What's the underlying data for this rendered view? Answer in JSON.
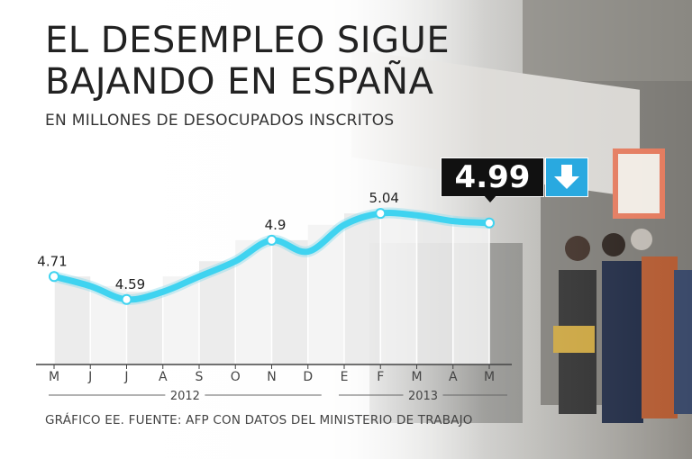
{
  "title_line1": "EL DESEMPLEO SIGUE",
  "title_line2": "BAJANDO EN ESPAÑA",
  "subtitle": "EN MILLONES DE DESOCUPADOS INSCRITOS",
  "footer": "GRÁFICO EE. FUENTE: AFP CON DATOS DEL MINISTERIO DE TRABAJO",
  "callout": {
    "value": "4.99",
    "icon": "down-arrow-icon"
  },
  "colors": {
    "line": "#3fd3f0",
    "callout_bg": "#111111",
    "arrow_bg": "#29a9e0"
  },
  "chart_data": {
    "type": "line",
    "categories": [
      "M",
      "J",
      "J",
      "A",
      "S",
      "O",
      "N",
      "D",
      "E",
      "F",
      "M",
      "A",
      "M"
    ],
    "year_groups": [
      {
        "label": "2012",
        "from": 0,
        "to": 7
      },
      {
        "label": "2013",
        "from": 8,
        "to": 12
      }
    ],
    "values": [
      4.71,
      4.66,
      4.59,
      4.63,
      4.71,
      4.79,
      4.9,
      4.84,
      4.98,
      5.04,
      5.03,
      5.0,
      4.99
    ],
    "labeled_points": [
      {
        "index": 0,
        "text": "4.71"
      },
      {
        "index": 2,
        "text": "4.59"
      },
      {
        "index": 6,
        "text": "4.9"
      },
      {
        "index": 9,
        "text": "5.04"
      }
    ],
    "grid": true
  }
}
